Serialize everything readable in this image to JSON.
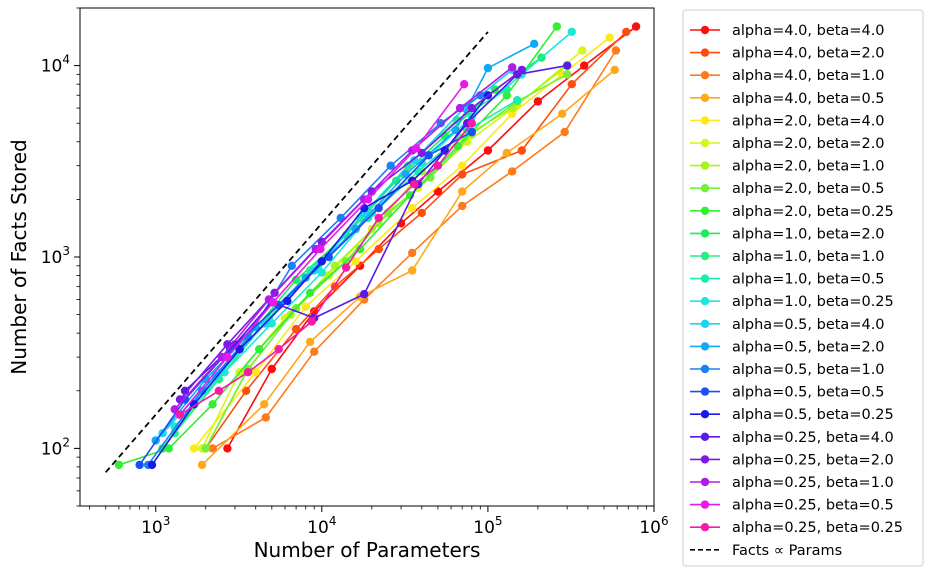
{
  "chart_data": {
    "type": "line",
    "xscale": "log",
    "yscale": "log",
    "xlabel": "Number of Parameters",
    "ylabel": "Number of Facts Stored",
    "xlim": [
      350,
      1000000
    ],
    "ylim": [
      50,
      20000
    ],
    "x_ticks": [
      {
        "value": 1000,
        "base": "10",
        "exp": "3"
      },
      {
        "value": 10000,
        "base": "10",
        "exp": "4"
      },
      {
        "value": 100000,
        "base": "10",
        "exp": "5"
      },
      {
        "value": 1000000,
        "base": "10",
        "exp": "6"
      }
    ],
    "y_ticks": [
      {
        "value": 100,
        "base": "10",
        "exp": "2"
      },
      {
        "value": 1000,
        "base": "10",
        "exp": "3"
      },
      {
        "value": 10000,
        "base": "10",
        "exp": "4"
      }
    ],
    "reference_line": {
      "name": "Facts ∝ Params",
      "x": [
        500,
        100000
      ],
      "y": [
        75,
        15000
      ],
      "color": "#000000",
      "style": "dashed"
    },
    "series": [
      {
        "name": "alpha=4.0, beta=4.0",
        "color": "#ff0d0d",
        "x": [
          2700,
          5000,
          9000,
          17000,
          30000,
          50000,
          100000,
          200000,
          380000,
          780000
        ],
        "y": [
          100,
          260,
          520,
          900,
          1500,
          2200,
          3600,
          6500,
          10000,
          16000
        ]
      },
      {
        "name": "alpha=4.0, beta=2.0",
        "color": "#ff4d0d",
        "x": [
          2000,
          3500,
          7000,
          12000,
          22000,
          40000,
          70000,
          160000,
          320000,
          680000
        ],
        "y": [
          100,
          200,
          420,
          700,
          1100,
          1700,
          2700,
          3600,
          8000,
          15000
        ]
      },
      {
        "name": "alpha=4.0, beta=1.0",
        "color": "#ff7a1a",
        "x": [
          2200,
          4600,
          9000,
          18000,
          35000,
          70000,
          140000,
          290000,
          590000
        ],
        "y": [
          100,
          145,
          320,
          600,
          1050,
          1850,
          2800,
          4500,
          12000
        ]
      },
      {
        "name": "alpha=4.0, beta=0.5",
        "color": "#ffa81a",
        "x": [
          1900,
          4500,
          8500,
          17000,
          35000,
          70000,
          130000,
          280000,
          580000
        ],
        "y": [
          82,
          170,
          360,
          620,
          850,
          2200,
          3500,
          5600,
          9500
        ]
      },
      {
        "name": "alpha=2.0, beta=4.0",
        "color": "#ffe81a",
        "x": [
          1700,
          4000,
          8000,
          16000,
          35000,
          70000,
          140000,
          280000,
          540000
        ],
        "y": [
          100,
          250,
          550,
          950,
          1800,
          3000,
          5600,
          9000,
          14000
        ]
      },
      {
        "name": "alpha=2.0, beta=2.0",
        "color": "#d6f51a",
        "x": [
          1900,
          3200,
          6000,
          11000,
          20000,
          38000,
          75000,
          150000,
          370000
        ],
        "y": [
          100,
          250,
          480,
          800,
          1400,
          2300,
          4000,
          6200,
          12000
        ]
      },
      {
        "name": "alpha=2.0, beta=1.0",
        "color": "#a6f51a",
        "x": [
          2000,
          3500,
          6500,
          12000,
          22000,
          40000,
          70000,
          140000,
          300000
        ],
        "y": [
          100,
          250,
          500,
          900,
          1500,
          2800,
          4200,
          6000,
          10000
        ]
      },
      {
        "name": "alpha=2.0, beta=0.5",
        "color": "#73f03a",
        "x": [
          2000,
          3600,
          7000,
          14000,
          25000,
          45000,
          80000,
          150000,
          300000
        ],
        "y": [
          100,
          260,
          540,
          950,
          1700,
          2600,
          4400,
          6500,
          9000
        ]
      },
      {
        "name": "alpha=2.0, beta=0.25",
        "color": "#33ee33",
        "x": [
          600,
          1200,
          2200,
          4200,
          8500,
          17000,
          34000,
          66000,
          130000,
          260000
        ],
        "y": [
          82,
          100,
          170,
          330,
          650,
          1100,
          2100,
          3800,
          7000,
          16000
        ]
      },
      {
        "name": "alpha=1.0, beta=2.0",
        "color": "#1aee5a",
        "x": [
          1100,
          2000,
          3600,
          7000,
          14000,
          28000,
          55000,
          110000,
          210000
        ],
        "y": [
          100,
          200,
          380,
          760,
          1300,
          2500,
          4300,
          7500,
          11000
        ]
      },
      {
        "name": "alpha=1.0, beta=1.0",
        "color": "#26ee80",
        "x": [
          1300,
          2400,
          4500,
          8500,
          17000,
          33000,
          65000,
          130000
        ],
        "y": [
          120,
          230,
          450,
          850,
          1600,
          3000,
          5200,
          7500
        ]
      },
      {
        "name": "alpha=1.0, beta=0.5",
        "color": "#1aeeae",
        "x": [
          1300,
          2500,
          4800,
          9500,
          19000,
          38000,
          75000,
          150000
        ],
        "y": [
          130,
          250,
          480,
          900,
          1600,
          2800,
          4600,
          6600
        ]
      },
      {
        "name": "alpha=1.0, beta=0.25",
        "color": "#1ae8d8",
        "x": [
          1300,
          2600,
          5000,
          10000,
          20000,
          40000,
          80000,
          160000,
          320000
        ],
        "y": [
          130,
          250,
          450,
          830,
          1700,
          3100,
          5400,
          9000,
          15000
        ]
      },
      {
        "name": "alpha=0.5, beta=4.0",
        "color": "#1ad4f5",
        "x": [
          1100,
          2300,
          4600,
          9000,
          18000,
          36000,
          72000,
          140000
        ],
        "y": [
          120,
          240,
          450,
          850,
          1700,
          3200,
          6000,
          9500
        ]
      },
      {
        "name": "alpha=0.5, beta=2.0",
        "color": "#12a8f5",
        "x": [
          1000,
          2000,
          4000,
          8000,
          16000,
          32000,
          64000,
          100000,
          190000
        ],
        "y": [
          110,
          230,
          430,
          780,
          1400,
          2700,
          4600,
          9700,
          13000
        ]
      },
      {
        "name": "alpha=0.5, beta=1.0",
        "color": "#1a80f5",
        "x": [
          900,
          1900,
          3600,
          6600,
          13000,
          26000,
          52000,
          90000
        ],
        "y": [
          82,
          200,
          380,
          900,
          1600,
          3000,
          5000,
          7000
        ]
      },
      {
        "name": "alpha=0.5, beta=0.5",
        "color": "#1a4ff5",
        "x": [
          800,
          1500,
          2800,
          5500,
          11000,
          22000,
          44000,
          80000
        ],
        "y": [
          82,
          180,
          330,
          560,
          1000,
          1800,
          3400,
          4500
        ]
      },
      {
        "name": "alpha=0.5, beta=0.25",
        "color": "#1a1ae8",
        "x": [
          950,
          1700,
          3200,
          6200,
          10000,
          18000,
          35000,
          55000,
          100000
        ],
        "y": [
          82,
          170,
          330,
          590,
          950,
          1800,
          2500,
          3600,
          7000
        ]
      },
      {
        "name": "alpha=0.25, beta=4.0",
        "color": "#5a1ae8",
        "x": [
          1500,
          3000,
          5000,
          9000,
          18000,
          38000,
          75000,
          150000,
          300000
        ],
        "y": [
          200,
          350,
          580,
          480,
          640,
          2400,
          5000,
          9000,
          10000
        ]
      },
      {
        "name": "alpha=0.25, beta=2.0",
        "color": "#7d1ae8",
        "x": [
          1400,
          2700,
          5200,
          10000,
          20000,
          40000,
          80000,
          160000
        ],
        "y": [
          180,
          350,
          650,
          1200,
          2200,
          3500,
          6000,
          9500
        ]
      },
      {
        "name": "alpha=0.25, beta=1.0",
        "color": "#b21ae8",
        "x": [
          1300,
          2500,
          4800,
          9200,
          18000,
          35000,
          68000,
          140000
        ],
        "y": [
          160,
          300,
          600,
          1100,
          2000,
          3600,
          6000,
          9800
        ]
      },
      {
        "name": "alpha=0.25, beta=0.5",
        "color": "#e81ae8",
        "x": [
          1400,
          2700,
          5100,
          9800,
          19000,
          37000,
          72000
        ],
        "y": [
          150,
          300,
          580,
          1100,
          2000,
          3700,
          8000
        ]
      },
      {
        "name": "alpha=0.25, beta=0.25",
        "color": "#f51aa8",
        "x": [
          1400,
          2400,
          3600,
          5500,
          8700,
          14000,
          22000,
          36000,
          50000,
          80000
        ],
        "y": [
          150,
          200,
          250,
          330,
          460,
          880,
          1600,
          2400,
          3000,
          5000
        ]
      }
    ],
    "legend_location": "outside-right"
  }
}
